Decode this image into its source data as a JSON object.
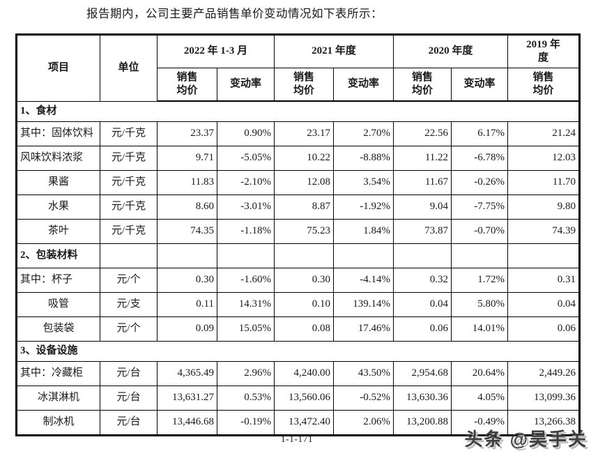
{
  "page": {
    "intro_text": "报告期内，公司主要产品销售单价变动情况如下表所示：",
    "page_number": "1-1-171",
    "watermark": "头条 @昊手关"
  },
  "colors": {
    "border": "#000000",
    "text": "#1a1a1a",
    "watermark_text": "#3f3f3f"
  },
  "table": {
    "header": {
      "item_label": "项目",
      "unit_label": "单位",
      "period_labels": [
        "2022 年 1-3 月",
        "2021 年度",
        "2020 年度",
        "2019 年\n度"
      ],
      "sub_labels": [
        "销售\n均价",
        "变动率",
        "销售\n均价",
        "变动率",
        "销售\n均价",
        "变动率",
        "销售\n均价"
      ]
    },
    "rows": [
      {
        "type": "section",
        "label": "1、食材",
        "layout": "full"
      },
      {
        "type": "data",
        "item": "其中：固体饮料",
        "item_align": "left",
        "unit": "元/千克",
        "values": [
          "23.37",
          "0.90%",
          "23.17",
          "2.70%",
          "22.56",
          "6.17%",
          "21.24"
        ]
      },
      {
        "type": "data",
        "item": "风味饮料浓浆",
        "item_align": "left",
        "unit": "元/千克",
        "values": [
          "9.71",
          "-5.05%",
          "10.22",
          "-8.88%",
          "11.22",
          "-6.78%",
          "12.03"
        ]
      },
      {
        "type": "data",
        "item": "果酱",
        "item_align": "center",
        "unit": "元/千克",
        "values": [
          "11.83",
          "-2.10%",
          "12.08",
          "3.54%",
          "11.67",
          "-0.26%",
          "11.70"
        ]
      },
      {
        "type": "data",
        "item": "水果",
        "item_align": "center",
        "unit": "元/千克",
        "values": [
          "8.60",
          "-3.01%",
          "8.87",
          "-1.92%",
          "9.04",
          "-7.75%",
          "9.80"
        ]
      },
      {
        "type": "data",
        "item": "茶叶",
        "item_align": "center",
        "unit": "元/千克",
        "values": [
          "74.35",
          "-1.18%",
          "75.23",
          "1.84%",
          "73.87",
          "-0.70%",
          "74.39"
        ]
      },
      {
        "type": "section",
        "label": "2、包装材料",
        "layout": "cells"
      },
      {
        "type": "data",
        "item": "其中：杯子",
        "item_align": "left",
        "unit": "元/个",
        "values": [
          "0.30",
          "-1.60%",
          "0.30",
          "-4.14%",
          "0.32",
          "1.72%",
          "0.31"
        ]
      },
      {
        "type": "data",
        "item": "吸管",
        "item_align": "center",
        "unit": "元/支",
        "values": [
          "0.11",
          "14.31%",
          "0.10",
          "139.14%",
          "0.04",
          "5.80%",
          "0.04"
        ]
      },
      {
        "type": "data",
        "item": "包装袋",
        "item_align": "center",
        "unit": "元/个",
        "values": [
          "0.09",
          "15.05%",
          "0.08",
          "17.46%",
          "0.06",
          "14.01%",
          "0.06"
        ]
      },
      {
        "type": "section",
        "label": "3、设备设施",
        "layout": "full"
      },
      {
        "type": "data",
        "item": "其中：冷藏柜",
        "item_align": "left",
        "unit": "元/台",
        "values": [
          "4,365.49",
          "2.96%",
          "4,240.00",
          "43.50%",
          "2,954.68",
          "20.64%",
          "2,449.26"
        ]
      },
      {
        "type": "data",
        "item": "冰淇淋机",
        "item_align": "center",
        "unit": "元/台",
        "values": [
          "13,631.27",
          "0.53%",
          "13,560.06",
          "-0.52%",
          "13,630.36",
          "4.05%",
          "13,099.36"
        ]
      },
      {
        "type": "data",
        "item": "制冰机",
        "item_align": "center",
        "unit": "元/台",
        "values": [
          "13,446.68",
          "-0.19%",
          "13,472.40",
          "2.06%",
          "13,200.88",
          "-0.49%",
          "13,266.38"
        ]
      }
    ]
  }
}
